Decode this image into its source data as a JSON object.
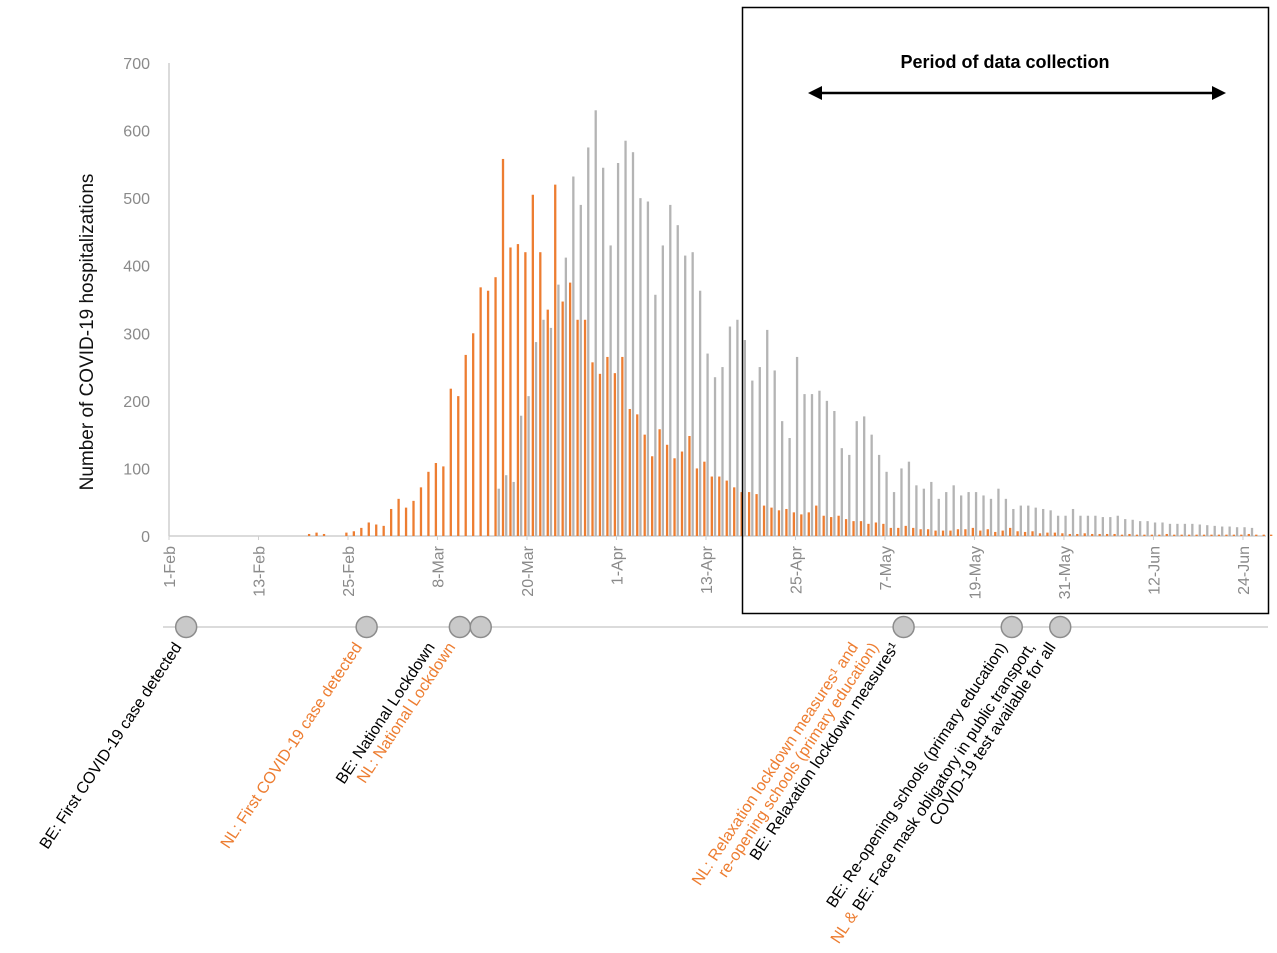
{
  "chart_data": {
    "type": "bar",
    "ylabel": "Number of COVID-19 hospitalizations",
    "xlabel": "",
    "ylim": [
      0,
      700
    ],
    "yticks": [
      "0",
      "100",
      "200",
      "300",
      "400",
      "500",
      "600",
      "700"
    ],
    "start_date": "1-Feb",
    "xticks": [
      {
        "day": 0,
        "label": "1-Feb"
      },
      {
        "day": 12,
        "label": "13-Feb"
      },
      {
        "day": 24,
        "label": "25-Feb"
      },
      {
        "day": 36,
        "label": "8-Mar"
      },
      {
        "day": 48,
        "label": "20-Mar"
      },
      {
        "day": 60,
        "label": "1-Apr"
      },
      {
        "day": 72,
        "label": "13-Apr"
      },
      {
        "day": 84,
        "label": "25-Apr"
      },
      {
        "day": 96,
        "label": "7-May"
      },
      {
        "day": 108,
        "label": "19-May"
      },
      {
        "day": 120,
        "label": "31-May"
      },
      {
        "day": 132,
        "label": "12-Jun"
      },
      {
        "day": 144,
        "label": "24-Jun"
      }
    ],
    "series": [
      {
        "key": "NL",
        "color": "#ED7D31",
        "values": [
          0,
          0,
          0,
          0,
          0,
          0,
          0,
          0,
          0,
          0,
          0,
          0,
          0,
          0,
          0,
          0,
          0,
          0,
          0,
          3,
          5,
          3,
          0,
          0,
          5,
          7,
          12,
          20,
          17,
          15,
          40,
          55,
          42,
          52,
          72,
          95,
          108,
          103,
          218,
          207,
          268,
          300,
          368,
          363,
          383,
          558,
          427,
          432,
          420,
          505,
          420,
          335,
          520,
          347,
          375,
          320,
          320,
          257,
          240,
          265,
          241,
          265,
          188,
          180,
          150,
          118,
          158,
          135,
          115,
          125,
          148,
          100,
          110,
          88,
          88,
          82,
          72,
          65,
          65,
          62,
          45,
          42,
          38,
          40,
          35,
          32,
          35,
          45,
          30,
          28,
          30,
          25,
          22,
          22,
          18,
          20,
          18,
          12,
          12,
          15,
          12,
          10,
          10,
          8,
          8,
          8,
          10,
          10,
          12,
          8,
          10,
          6,
          8,
          12,
          7,
          6,
          7,
          4,
          5,
          5,
          4,
          3,
          3,
          4,
          3,
          3,
          3,
          3,
          2,
          3,
          2,
          2,
          2,
          2,
          3,
          2,
          2,
          2,
          2,
          2,
          2,
          2,
          2,
          2,
          2,
          3,
          2,
          2,
          2,
          2
        ]
      },
      {
        "key": "BE",
        "color": "#B4B4B4",
        "values": [
          0,
          0,
          0,
          0,
          0,
          0,
          0,
          0,
          0,
          0,
          0,
          0,
          0,
          0,
          0,
          0,
          0,
          0,
          0,
          0,
          0,
          0,
          0,
          0,
          0,
          0,
          0,
          0,
          0,
          0,
          0,
          0,
          0,
          0,
          0,
          0,
          0,
          0,
          0,
          0,
          0,
          0,
          0,
          0,
          70,
          90,
          80,
          178,
          207,
          287,
          320,
          308,
          372,
          412,
          532,
          490,
          575,
          630,
          545,
          430,
          552,
          585,
          568,
          500,
          495,
          357,
          430,
          490,
          460,
          415,
          420,
          363,
          270,
          235,
          250,
          310,
          320,
          290,
          230,
          250,
          305,
          245,
          170,
          145,
          265,
          210,
          210,
          215,
          200,
          185,
          130,
          120,
          170,
          177,
          150,
          120,
          95,
          65,
          100,
          110,
          75,
          70,
          80,
          55,
          65,
          75,
          60,
          65,
          65,
          60,
          55,
          70,
          55,
          40,
          45,
          45,
          42,
          40,
          38,
          30,
          30,
          40,
          30,
          30,
          30,
          28,
          28,
          30,
          25,
          24,
          22,
          22,
          20,
          20,
          18,
          18,
          18,
          18,
          17,
          16,
          15,
          14,
          14,
          13,
          13,
          12
        ]
      }
    ]
  },
  "period_label": "Period of data collection",
  "events": [
    {
      "marker_day": 2.3,
      "lines": [
        {
          "segments": [
            {
              "text": "BE: First COVID-19 case detected",
              "color": "black"
            }
          ]
        }
      ]
    },
    {
      "marker_day": 26.5,
      "lines": [
        {
          "segments": [
            {
              "text": "NL: First COVID-19 case detected",
              "color": "orange"
            }
          ]
        }
      ]
    },
    {
      "marker_day": 39.0,
      "lines": [
        {
          "segments": [
            {
              "text": "BE: National Lockdown",
              "color": "black"
            }
          ]
        },
        {
          "segments": [
            {
              "text": "NL: National Lockdown",
              "color": "orange"
            }
          ]
        }
      ]
    },
    {
      "marker_day": 41.8,
      "lines": []
    },
    {
      "marker_day": 98.5,
      "lines": [
        {
          "segments": [
            {
              "text": "NL: Relaxation lockdown measures¹ and",
              "color": "orange"
            }
          ]
        },
        {
          "segments": [
            {
              "text": "re-opening schools (primary education)",
              "color": "orange"
            }
          ]
        },
        {
          "segments": [
            {
              "text": "BE: Relaxation lockdown measures¹",
              "color": "black"
            }
          ]
        }
      ]
    },
    {
      "marker_day": 113.0,
      "lines": [
        {
          "segments": [
            {
              "text": "BE: Re-opening schools (primary education)",
              "color": "black"
            }
          ]
        }
      ]
    },
    {
      "marker_day": 119.5,
      "lines": [
        {
          "segments": [
            {
              "text": "NL & ",
              "color": "orange"
            },
            {
              "text": "BE: Face mask obligatory in public transport,",
              "color": "black"
            }
          ]
        },
        {
          "segments": [
            {
              "text": "COVID-19 test available for all",
              "color": "black"
            }
          ]
        }
      ]
    }
  ],
  "colors": {
    "orange": "#ED7D31",
    "black": "#000000",
    "grey_axis": "#CFCFCF",
    "marker_fill": "#C9C9C9",
    "marker_stroke": "#8C8C8C"
  }
}
